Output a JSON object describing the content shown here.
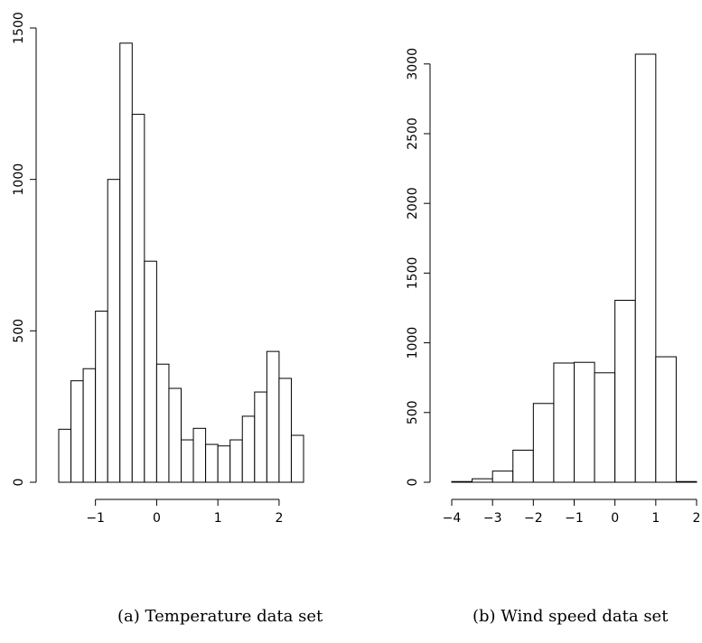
{
  "captions": {
    "a": "(a) Temperature data set",
    "b": "(b) Wind speed data set"
  },
  "chart_data": [
    {
      "type": "bar",
      "title": "",
      "xlabel": "",
      "ylabel": "",
      "bin_edges": [
        -1.6,
        -1.4,
        -1.2,
        -1.0,
        -0.8,
        -0.6,
        -0.4,
        -0.2,
        0.0,
        0.2,
        0.4,
        0.6,
        0.8,
        1.0,
        1.2,
        1.4,
        1.6,
        1.8,
        2.0,
        2.2,
        2.4
      ],
      "values": [
        175,
        335,
        375,
        565,
        1000,
        1450,
        1215,
        730,
        390,
        310,
        140,
        178,
        125,
        120,
        140,
        218,
        298,
        432,
        343,
        155
      ],
      "xticks": [
        -1,
        0,
        1,
        2
      ],
      "xtick_labels": [
        "−1",
        "0",
        "1",
        "2"
      ],
      "yticks": [
        0,
        500,
        1000,
        1500
      ],
      "ytick_labels": [
        "0",
        "500",
        "1000",
        "1500"
      ],
      "xlim": [
        -1.6,
        2.4
      ],
      "ylim": [
        0,
        1500
      ],
      "grid": false
    },
    {
      "type": "bar",
      "title": "",
      "xlabel": "",
      "ylabel": "",
      "bin_edges": [
        -4.0,
        -3.5,
        -3.0,
        -2.5,
        -2.0,
        -1.5,
        -1.0,
        -0.5,
        0.0,
        0.5,
        1.0,
        1.5,
        2.0
      ],
      "values": [
        5,
        25,
        80,
        230,
        565,
        855,
        860,
        785,
        1305,
        3070,
        900,
        5
      ],
      "xticks": [
        -4,
        -3,
        -2,
        -1,
        0,
        1,
        2
      ],
      "xtick_labels": [
        "−4",
        "−3",
        "−2",
        "−1",
        "0",
        "1",
        "2"
      ],
      "yticks": [
        0,
        500,
        1000,
        1500,
        2000,
        2500,
        3000
      ],
      "ytick_labels": [
        "0",
        "500",
        "1000",
        "1500",
        "2000",
        "2500",
        "3000"
      ],
      "xlim": [
        -4,
        2
      ],
      "ylim": [
        0,
        3070
      ],
      "grid": false
    }
  ]
}
